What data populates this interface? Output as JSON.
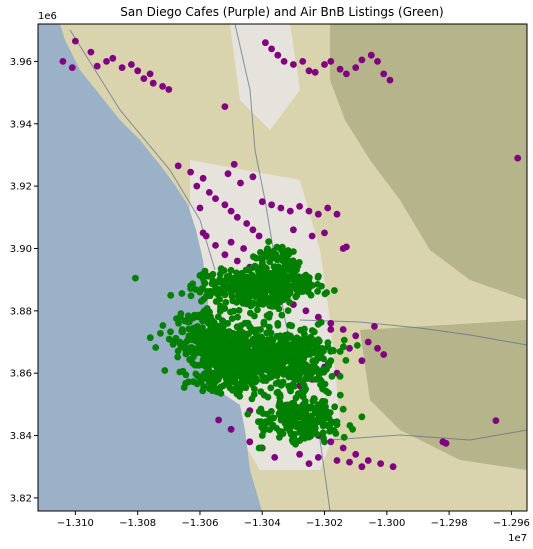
{
  "chart_data": {
    "type": "scatter",
    "title": "San Diego Cafes (Purple) and Air BnB Listings (Green)",
    "xlabel": "",
    "ylabel": "",
    "x_offset_label": "1e7",
    "y_offset_label": "1e6",
    "xlim": [
      -1.3112,
      -1.2955
    ],
    "ylim": [
      3.8158,
      3.972
    ],
    "x_ticks": [
      -1.31,
      -1.308,
      -1.306,
      -1.304,
      -1.302,
      -1.3,
      -1.298,
      -1.296
    ],
    "x_tick_labels": [
      "−1.310",
      "−1.308",
      "−1.306",
      "−1.304",
      "−1.302",
      "−1.300",
      "−1.298",
      "−1.296"
    ],
    "y_ticks": [
      3.82,
      3.84,
      3.86,
      3.88,
      3.9,
      3.92,
      3.94,
      3.96
    ],
    "y_tick_labels": [
      "3.82",
      "3.84",
      "3.86",
      "3.88",
      "3.90",
      "3.92",
      "3.94",
      "3.96"
    ],
    "grid": false,
    "legend": "none",
    "colors": {
      "cafes": "#800080",
      "airbnb": "#008000",
      "ocean": "#9bb1c8",
      "land": "#d9d4ae",
      "urban": "#e6e3dc",
      "hills": "#b5b48a",
      "road": "#5b6b8a"
    },
    "series": [
      {
        "name": "Cafes",
        "color": "#800080",
        "points": [
          [
            -1.31,
            3.9665
          ],
          [
            -1.3095,
            3.963
          ],
          [
            -1.309,
            3.96
          ],
          [
            -1.3085,
            3.958
          ],
          [
            -1.308,
            3.957
          ],
          [
            -1.3078,
            3.9545
          ],
          [
            -1.3075,
            3.953
          ],
          [
            -1.3072,
            3.952
          ],
          [
            -1.307,
            3.951
          ],
          [
            -1.3082,
            3.959
          ],
          [
            -1.3093,
            3.9585
          ],
          [
            -1.3088,
            3.961
          ],
          [
            -1.3076,
            3.956
          ],
          [
            -1.3104,
            3.96
          ],
          [
            -1.3101,
            3.958
          ],
          [
            -1.3039,
            3.966
          ],
          [
            -1.3037,
            3.964
          ],
          [
            -1.3035,
            3.962
          ],
          [
            -1.3033,
            3.96
          ],
          [
            -1.303,
            3.959
          ],
          [
            -1.3027,
            3.96
          ],
          [
            -1.3025,
            3.957
          ],
          [
            -1.3023,
            3.9565
          ],
          [
            -1.302,
            3.959
          ],
          [
            -1.3018,
            3.96
          ],
          [
            -1.3015,
            3.9575
          ],
          [
            -1.3013,
            3.956
          ],
          [
            -1.301,
            3.958
          ],
          [
            -1.3008,
            3.9605
          ],
          [
            -1.3005,
            3.962
          ],
          [
            -1.3003,
            3.96
          ],
          [
            -1.3001,
            3.956
          ],
          [
            -1.2999,
            3.954
          ],
          [
            -1.3052,
            3.9455
          ],
          [
            -1.3067,
            3.9265
          ],
          [
            -1.3063,
            3.9245
          ],
          [
            -1.3059,
            3.9225
          ],
          [
            -1.3061,
            3.92
          ],
          [
            -1.3057,
            3.918
          ],
          [
            -1.3055,
            3.916
          ],
          [
            -1.3052,
            3.914
          ],
          [
            -1.305,
            3.912
          ],
          [
            -1.3048,
            3.91
          ],
          [
            -1.3045,
            3.908
          ],
          [
            -1.3043,
            3.906
          ],
          [
            -1.3041,
            3.904
          ],
          [
            -1.305,
            3.902
          ],
          [
            -1.3046,
            3.9
          ],
          [
            -1.3052,
            3.898
          ],
          [
            -1.3048,
            3.896
          ],
          [
            -1.3044,
            3.894
          ],
          [
            -1.304,
            3.892
          ],
          [
            -1.3047,
            3.921
          ],
          [
            -1.3043,
            3.923
          ],
          [
            -1.304,
            3.915
          ],
          [
            -1.3037,
            3.914
          ],
          [
            -1.3034,
            3.913
          ],
          [
            -1.3031,
            3.912
          ],
          [
            -1.3028,
            3.9135
          ],
          [
            -1.3025,
            3.912
          ],
          [
            -1.3022,
            3.911
          ],
          [
            -1.3019,
            3.913
          ],
          [
            -1.3016,
            3.911
          ],
          [
            -1.306,
            3.913
          ],
          [
            -1.3058,
            3.904
          ],
          [
            -1.3055,
            3.901
          ],
          [
            -1.3059,
            3.905
          ],
          [
            -1.3051,
            3.924
          ],
          [
            -1.3049,
            3.927
          ],
          [
            -1.303,
            3.906
          ],
          [
            -1.3024,
            3.904
          ],
          [
            -1.3014,
            3.9
          ],
          [
            -1.302,
            3.905
          ],
          [
            -1.2958,
            3.929
          ],
          [
            -1.3013,
            3.9005
          ],
          [
            -1.303,
            3.882
          ],
          [
            -1.3026,
            3.88
          ],
          [
            -1.3022,
            3.878
          ],
          [
            -1.3018,
            3.876
          ],
          [
            -1.3014,
            3.874
          ],
          [
            -1.301,
            3.872
          ],
          [
            -1.3006,
            3.87
          ],
          [
            -1.3003,
            3.868
          ],
          [
            -1.3001,
            3.866
          ],
          [
            -1.3012,
            3.868
          ],
          [
            -1.3008,
            3.864
          ],
          [
            -1.302,
            3.862
          ],
          [
            -1.3016,
            3.86
          ],
          [
            -1.3024,
            3.858
          ],
          [
            -1.3028,
            3.856
          ],
          [
            -1.3018,
            3.874
          ],
          [
            -1.3004,
            3.875
          ],
          [
            -1.304,
            3.883
          ],
          [
            -1.3036,
            3.885
          ],
          [
            -1.3034,
            3.887
          ],
          [
            -1.3054,
            3.866
          ],
          [
            -1.305,
            3.862
          ],
          [
            -1.3046,
            3.86
          ],
          [
            -1.3058,
            3.87
          ],
          [
            -1.3062,
            3.874
          ],
          [
            -1.3034,
            3.846
          ],
          [
            -1.303,
            3.844
          ],
          [
            -1.3026,
            3.842
          ],
          [
            -1.3022,
            3.84
          ],
          [
            -1.3018,
            3.838
          ],
          [
            -1.3014,
            3.836
          ],
          [
            -1.301,
            3.834
          ],
          [
            -1.3006,
            3.832
          ],
          [
            -1.3002,
            3.831
          ],
          [
            -1.3016,
            3.832
          ],
          [
            -1.3022,
            3.833
          ],
          [
            -1.3028,
            3.834
          ],
          [
            -1.3036,
            3.833
          ],
          [
            -1.304,
            3.836
          ],
          [
            -1.3044,
            3.838
          ],
          [
            -1.305,
            3.842
          ],
          [
            -1.3054,
            3.845
          ],
          [
            -1.3044,
            3.848
          ],
          [
            -1.3025,
            3.831
          ],
          [
            -1.3008,
            3.83
          ],
          [
            -1.2998,
            3.83
          ],
          [
            -1.3012,
            3.8315
          ],
          [
            -1.2982,
            3.838
          ],
          [
            -1.2981,
            3.8375
          ],
          [
            -1.2965,
            3.8448
          ]
        ]
      },
      {
        "name": "Air BnB Listings",
        "color": "#008000",
        "clusters": [
          {
            "cx": -1.3045,
            "cy": 3.8865,
            "sx": 0.00085,
            "sy": 0.0032,
            "n": 260
          },
          {
            "cx": -1.3058,
            "cy": 3.872,
            "sx": 0.00055,
            "sy": 0.0035,
            "n": 180
          },
          {
            "cx": -1.3044,
            "cy": 3.866,
            "sx": 0.0009,
            "sy": 0.005,
            "n": 420
          },
          {
            "cx": -1.3028,
            "cy": 3.864,
            "sx": 0.0006,
            "sy": 0.0045,
            "n": 200
          },
          {
            "cx": -1.3036,
            "cy": 3.893,
            "sx": 0.00045,
            "sy": 0.004,
            "n": 120
          },
          {
            "cx": -1.3028,
            "cy": 3.8455,
            "sx": 0.0006,
            "sy": 0.0038,
            "n": 200
          },
          {
            "cx": -1.3052,
            "cy": 3.86,
            "sx": 0.0006,
            "sy": 0.0035,
            "n": 160
          },
          {
            "cx": -1.303,
            "cy": 3.888,
            "sx": 0.0005,
            "sy": 0.002,
            "n": 80
          }
        ],
        "points": [
          [
            -1.3011,
            3.842
          ],
          [
            -1.3008,
            3.846
          ],
          [
            -1.302,
            3.838
          ],
          [
            -1.3032,
            3.846
          ],
          [
            -1.3041,
            3.836
          ],
          [
            -1.304,
            3.84
          ],
          [
            -1.3025,
            3.8395
          ],
          [
            -1.3016,
            3.8435
          ],
          [
            -1.3063,
            3.888
          ],
          [
            -1.306,
            3.886
          ],
          [
            -1.3061,
            3.872
          ],
          [
            -1.3018,
            3.864
          ],
          [
            -1.3015,
            3.859
          ],
          [
            -1.305,
            3.893
          ],
          [
            -1.303,
            3.899
          ]
        ]
      }
    ]
  }
}
